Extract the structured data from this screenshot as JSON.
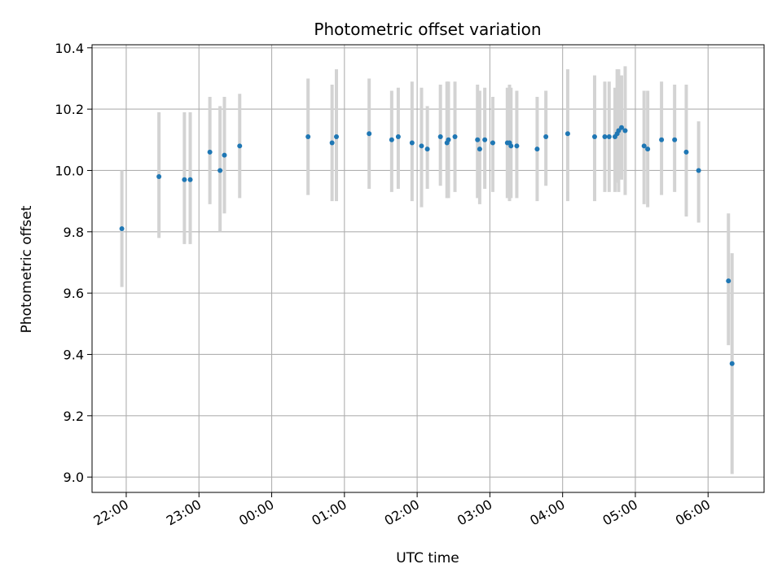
{
  "chart_data": {
    "type": "scatter",
    "title": "Photometric offset variation",
    "xlabel": "UTC time",
    "ylabel": "Photometric offset",
    "x_unit": "UTC time (hours after 00:00; negative = previous day)",
    "xlim": [
      -2.47,
      6.77
    ],
    "ylim": [
      8.95,
      10.41
    ],
    "x_ticks": [
      {
        "value": -2,
        "label": "22:00"
      },
      {
        "value": -1,
        "label": "23:00"
      },
      {
        "value": 0,
        "label": "00:00"
      },
      {
        "value": 1,
        "label": "01:00"
      },
      {
        "value": 2,
        "label": "02:00"
      },
      {
        "value": 3,
        "label": "03:00"
      },
      {
        "value": 4,
        "label": "04:00"
      },
      {
        "value": 5,
        "label": "05:00"
      },
      {
        "value": 6,
        "label": "06:00"
      }
    ],
    "y_ticks": [
      {
        "value": 9.0,
        "label": "9.0"
      },
      {
        "value": 9.2,
        "label": "9.2"
      },
      {
        "value": 9.4,
        "label": "9.4"
      },
      {
        "value": 9.6,
        "label": "9.6"
      },
      {
        "value": 9.8,
        "label": "9.8"
      },
      {
        "value": 10.0,
        "label": "10.0"
      },
      {
        "value": 10.2,
        "label": "10.2"
      },
      {
        "value": 10.4,
        "label": "10.4"
      }
    ],
    "grid": true,
    "marker_color": "#1f77b4",
    "errorbar_color": "#d3d3d3",
    "points": [
      {
        "x": -2.06,
        "y": 9.81,
        "lo": 9.62,
        "hi": 10.0
      },
      {
        "x": -1.55,
        "y": 9.98,
        "lo": 9.78,
        "hi": 10.19
      },
      {
        "x": -1.2,
        "y": 9.97,
        "lo": 9.76,
        "hi": 10.19
      },
      {
        "x": -1.12,
        "y": 9.97,
        "lo": 9.76,
        "hi": 10.19
      },
      {
        "x": -0.85,
        "y": 10.06,
        "lo": 9.89,
        "hi": 10.24
      },
      {
        "x": -0.71,
        "y": 10.0,
        "lo": 9.8,
        "hi": 10.21
      },
      {
        "x": -0.65,
        "y": 10.05,
        "lo": 9.86,
        "hi": 10.24
      },
      {
        "x": -0.44,
        "y": 10.08,
        "lo": 9.91,
        "hi": 10.25
      },
      {
        "x": 0.5,
        "y": 10.11,
        "lo": 9.92,
        "hi": 10.3
      },
      {
        "x": 0.83,
        "y": 10.09,
        "lo": 9.9,
        "hi": 10.28
      },
      {
        "x": 0.89,
        "y": 10.11,
        "lo": 9.9,
        "hi": 10.33
      },
      {
        "x": 1.34,
        "y": 10.12,
        "lo": 9.94,
        "hi": 10.3
      },
      {
        "x": 1.65,
        "y": 10.1,
        "lo": 9.93,
        "hi": 10.26
      },
      {
        "x": 1.74,
        "y": 10.11,
        "lo": 9.94,
        "hi": 10.27
      },
      {
        "x": 1.93,
        "y": 10.09,
        "lo": 9.9,
        "hi": 10.29
      },
      {
        "x": 2.06,
        "y": 10.08,
        "lo": 9.88,
        "hi": 10.27
      },
      {
        "x": 2.14,
        "y": 10.07,
        "lo": 9.94,
        "hi": 10.21
      },
      {
        "x": 2.32,
        "y": 10.11,
        "lo": 9.95,
        "hi": 10.28
      },
      {
        "x": 2.41,
        "y": 10.09,
        "lo": 9.91,
        "hi": 10.29
      },
      {
        "x": 2.43,
        "y": 10.1,
        "lo": 9.91,
        "hi": 10.29
      },
      {
        "x": 2.52,
        "y": 10.11,
        "lo": 9.93,
        "hi": 10.29
      },
      {
        "x": 2.83,
        "y": 10.1,
        "lo": 9.91,
        "hi": 10.28
      },
      {
        "x": 2.86,
        "y": 10.07,
        "lo": 9.89,
        "hi": 10.26
      },
      {
        "x": 2.93,
        "y": 10.1,
        "lo": 9.94,
        "hi": 10.27
      },
      {
        "x": 3.04,
        "y": 10.09,
        "lo": 9.93,
        "hi": 10.24
      },
      {
        "x": 3.24,
        "y": 10.09,
        "lo": 9.91,
        "hi": 10.27
      },
      {
        "x": 3.27,
        "y": 10.09,
        "lo": 9.9,
        "hi": 10.28
      },
      {
        "x": 3.29,
        "y": 10.08,
        "lo": 9.91,
        "hi": 10.27
      },
      {
        "x": 3.37,
        "y": 10.08,
        "lo": 9.91,
        "hi": 10.26
      },
      {
        "x": 3.65,
        "y": 10.07,
        "lo": 9.9,
        "hi": 10.24
      },
      {
        "x": 3.77,
        "y": 10.11,
        "lo": 9.95,
        "hi": 10.26
      },
      {
        "x": 4.07,
        "y": 10.12,
        "lo": 9.9,
        "hi": 10.33
      },
      {
        "x": 4.44,
        "y": 10.11,
        "lo": 9.9,
        "hi": 10.31
      },
      {
        "x": 4.58,
        "y": 10.11,
        "lo": 9.93,
        "hi": 10.29
      },
      {
        "x": 4.64,
        "y": 10.11,
        "lo": 9.93,
        "hi": 10.29
      },
      {
        "x": 4.72,
        "y": 10.11,
        "lo": 9.93,
        "hi": 10.27
      },
      {
        "x": 4.75,
        "y": 10.12,
        "lo": 9.96,
        "hi": 10.33
      },
      {
        "x": 4.77,
        "y": 10.13,
        "lo": 9.93,
        "hi": 10.33
      },
      {
        "x": 4.81,
        "y": 10.14,
        "lo": 9.97,
        "hi": 10.31
      },
      {
        "x": 4.86,
        "y": 10.13,
        "lo": 9.92,
        "hi": 10.34
      },
      {
        "x": 5.12,
        "y": 10.08,
        "lo": 9.89,
        "hi": 10.26
      },
      {
        "x": 5.17,
        "y": 10.07,
        "lo": 9.88,
        "hi": 10.26
      },
      {
        "x": 5.36,
        "y": 10.1,
        "lo": 9.92,
        "hi": 10.29
      },
      {
        "x": 5.54,
        "y": 10.1,
        "lo": 9.93,
        "hi": 10.28
      },
      {
        "x": 5.7,
        "y": 10.06,
        "lo": 9.85,
        "hi": 10.28
      },
      {
        "x": 5.87,
        "y": 10.0,
        "lo": 9.83,
        "hi": 10.16
      },
      {
        "x": 6.28,
        "y": 9.64,
        "lo": 9.43,
        "hi": 9.86
      },
      {
        "x": 6.33,
        "y": 9.37,
        "lo": 9.01,
        "hi": 9.73
      }
    ]
  }
}
